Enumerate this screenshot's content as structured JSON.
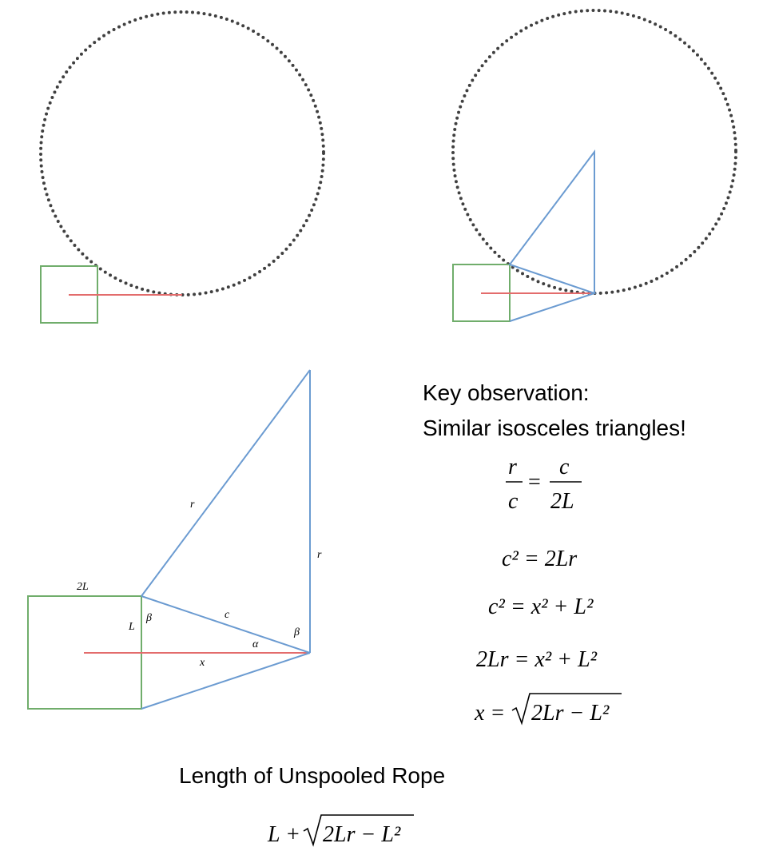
{
  "observation": {
    "line1": "Key observation:",
    "line2": "Similar isosceles triangles!"
  },
  "labels": {
    "twoL": "2L",
    "L": "L",
    "beta_left": "β",
    "c": "c",
    "alpha": "α",
    "beta_right": "β",
    "x": "x",
    "r_hyp": "r",
    "r_vert": "r"
  },
  "equations": {
    "eq1_num_left": "r",
    "eq1_den_left": "c",
    "eq1_equals": "=",
    "eq1_num_right": "c",
    "eq1_den_right": "2L",
    "eq2": "c² = 2Lr",
    "eq3": "c² = x² + L²",
    "eq4": "2Lr = x² + L²",
    "eq5_left": "x =",
    "eq5_radicand": "2Lr − L²"
  },
  "result": {
    "title": "Length of Unspooled Rope",
    "prefix": "L +",
    "radicand": "2Lr − L²"
  },
  "colors": {
    "square": "#70ad6b",
    "triangle": "#6b9bd1",
    "rope": "#e36c6c",
    "circle": "#404040"
  }
}
